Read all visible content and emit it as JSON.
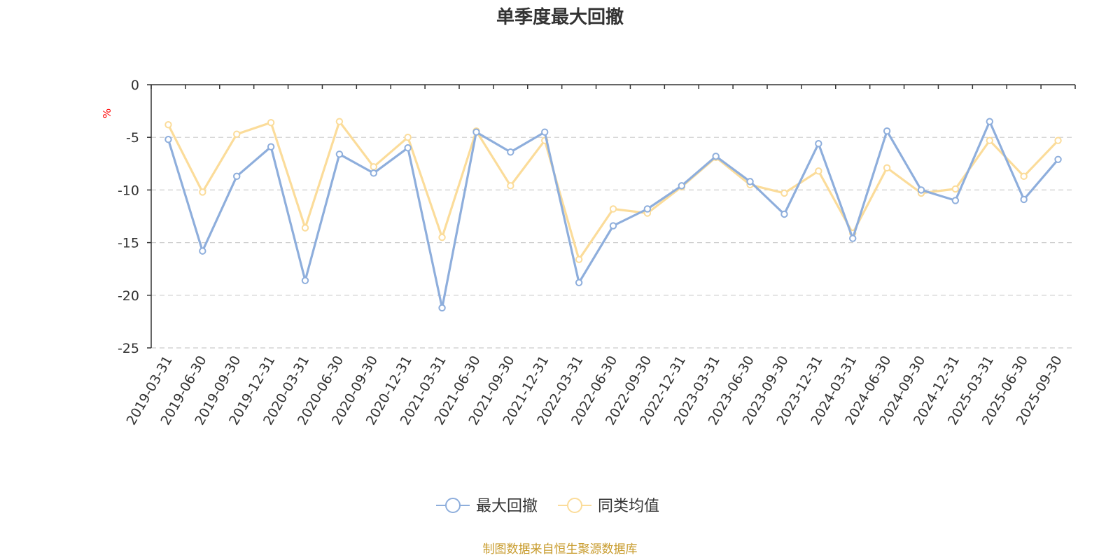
{
  "chart_data": {
    "type": "line",
    "title": "单季度最大回撤",
    "ylabel": "%",
    "ylim": [
      -25,
      0
    ],
    "yticks": [
      0,
      -5,
      -10,
      -15,
      -20,
      -25
    ],
    "grid": true,
    "legend_position": "bottom",
    "categories": [
      "2019-03-31",
      "2019-06-30",
      "2019-09-30",
      "2019-12-31",
      "2020-03-31",
      "2020-06-30",
      "2020-09-30",
      "2020-12-31",
      "2021-03-31",
      "2021-06-30",
      "2021-09-30",
      "2021-12-31",
      "2022-03-31",
      "2022-06-30",
      "2022-09-30",
      "2022-12-31",
      "2023-03-31",
      "2023-06-30",
      "2023-09-30",
      "2023-12-31",
      "2024-03-31",
      "2024-06-30",
      "2024-09-30",
      "2024-12-31",
      "2025-03-31",
      "2025-06-30",
      "2025-09-30"
    ],
    "series": [
      {
        "name": "最大回撤",
        "color": "#8eaedc",
        "values": [
          -5.2,
          -15.8,
          -8.7,
          -5.9,
          -18.6,
          -6.6,
          -8.4,
          -6.0,
          -21.2,
          -4.5,
          -6.4,
          -4.5,
          -18.8,
          -13.4,
          -11.8,
          -9.6,
          -6.8,
          -9.2,
          -12.3,
          -5.6,
          -14.6,
          -4.4,
          -10.0,
          -11.0,
          -3.5,
          -10.9,
          -7.1
        ]
      },
      {
        "name": "同类均值",
        "color": "#fbdc9a",
        "values": [
          -3.8,
          -10.2,
          -4.7,
          -3.6,
          -13.6,
          -3.5,
          -7.8,
          -5.0,
          -14.5,
          -4.4,
          -9.6,
          -5.3,
          -16.6,
          -11.8,
          -12.2,
          -9.7,
          -6.9,
          -9.5,
          -10.3,
          -8.2,
          -14.1,
          -7.9,
          -10.3,
          -9.9,
          -5.3,
          -8.7,
          -5.3
        ]
      }
    ]
  },
  "footer": {
    "source": "制图数据来自恒生聚源数据库"
  }
}
